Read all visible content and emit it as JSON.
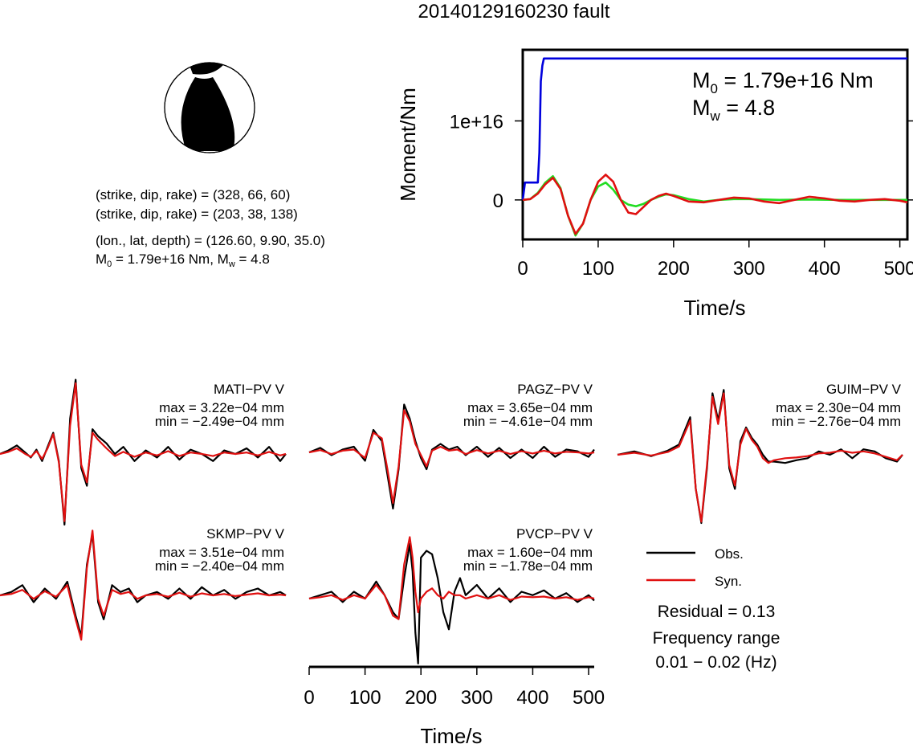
{
  "title": "20140129160230 fault",
  "colors": {
    "obs": "#000000",
    "syn": "#e01010",
    "moment": "#0000dd",
    "stf": "#22dd22",
    "background": "#ffffff"
  },
  "beachball": {
    "lines": [
      "(strike, dip, rake) = (328, 66, 60)",
      "(strike, dip, rake) = (203, 38, 138)",
      "(lon., lat, depth) = (126.60, 9.90, 35.0)"
    ],
    "m0_prefix": "M",
    "m0_sub": "0",
    "m0_value": " = 1.79e+16 Nm, M",
    "mw_sub": "w",
    "mw_value": " = 4.8"
  },
  "moment_panel": {
    "ylabel": "Moment/Nm",
    "xlabel": "Time/s",
    "m0_label": "M",
    "m0_sub": "0",
    "m0_text": " = 1.79e+16 Nm",
    "mw_label": "M",
    "mw_sub": "w",
    "mw_text": " = 4.8"
  },
  "legend": {
    "obs": "Obs.",
    "syn": "Syn.",
    "residual": "Residual = 0.13",
    "freq_title": "Frequency range",
    "freq_value": "0.01 − 0.02 (Hz)"
  },
  "waveform_axis": {
    "xlabel": "Time/s",
    "ticks": [
      "0",
      "100",
      "200",
      "300",
      "400",
      "500"
    ]
  },
  "stations": [
    {
      "name": "MATI−PV V",
      "max": "max = 3.22e−04 mm",
      "min": "min = −2.49e−04 mm"
    },
    {
      "name": "PAGZ−PV V",
      "max": "max = 3.65e−04 mm",
      "min": "min = −4.61e−04 mm"
    },
    {
      "name": "GUIM−PV V",
      "max": "max = 2.30e−04 mm",
      "min": "min = −2.76e−04 mm"
    },
    {
      "name": "SKMP−PV V",
      "max": "max = 3.51e−04 mm",
      "min": "min = −2.40e−04 mm"
    },
    {
      "name": "PVCP−PV V",
      "max": "max = 1.60e−04 mm",
      "min": "min = −1.78e−04 mm"
    }
  ],
  "chart_data": [
    {
      "type": "line",
      "title": "",
      "xlabel": "Time/s",
      "ylabel": "Moment/Nm",
      "xlim": [
        0,
        510
      ],
      "x_ticks": [
        0,
        100,
        200,
        300,
        400,
        500
      ],
      "y_ticks": [
        {
          "value": 0,
          "label": "0"
        },
        {
          "value": 1e+16,
          "label": "1e+16"
        }
      ],
      "ylim": [
        -5000000000000000.0,
        1.9e+16
      ],
      "grid": false,
      "series": [
        {
          "name": "",
          "color": "#0000dd",
          "x": [
            0,
            3,
            20,
            22,
            24,
            26,
            28,
            510
          ],
          "y": [
            0,
            2200000000000000.0,
            2200000000000000.0,
            6000000000000000.0,
            1.5e+16,
            1.7e+16,
            1.79e+16,
            1.79e+16
          ]
        },
        {
          "name": "",
          "color": "#22dd22",
          "x": [
            0,
            10,
            20,
            30,
            40,
            50,
            60,
            70,
            80,
            90,
            100,
            110,
            120,
            130,
            140,
            150,
            160,
            170,
            180,
            190,
            200,
            220,
            240,
            260,
            280,
            300,
            340,
            380,
            420,
            460,
            510
          ],
          "y": [
            0,
            100000000000000.0,
            900000000000000.0,
            2200000000000000.0,
            3000000000000000.0,
            1500000000000000.0,
            -2000000000000000.0,
            -4500000000000000.0,
            -3000000000000000.0,
            0,
            1700000000000000.0,
            2200000000000000.0,
            1300000000000000.0,
            0,
            -600000000000000.0,
            -800000000000000.0,
            -500000000000000.0,
            0,
            400000000000000.0,
            700000000000000.0,
            600000000000000.0,
            100000000000000.0,
            -200000000000000.0,
            0,
            100000000000000.0,
            100000000000000.0,
            0,
            50000000000000.0,
            0,
            0,
            0
          ]
        },
        {
          "name": "",
          "color": "#e01010",
          "x": [
            0,
            10,
            20,
            30,
            40,
            50,
            60,
            70,
            80,
            90,
            100,
            110,
            120,
            130,
            140,
            150,
            160,
            170,
            180,
            190,
            200,
            220,
            240,
            260,
            280,
            300,
            320,
            340,
            360,
            380,
            400,
            420,
            440,
            460,
            480,
            500,
            510
          ],
          "y": [
            0,
            100000000000000.0,
            800000000000000.0,
            2000000000000000.0,
            2800000000000000.0,
            1400000000000000.0,
            -2000000000000000.0,
            -4300000000000000.0,
            -3000000000000000.0,
            0,
            2300000000000000.0,
            3200000000000000.0,
            2300000000000000.0,
            0,
            -1600000000000000.0,
            -1800000000000000.0,
            -900000000000000.0,
            0,
            500000000000000.0,
            800000000000000.0,
            500000000000000.0,
            -200000000000000.0,
            -300000000000000.0,
            0,
            300000000000000.0,
            200000000000000.0,
            -200000000000000.0,
            -400000000000000.0,
            0,
            400000000000000.0,
            200000000000000.0,
            -100000000000000.0,
            -200000000000000.0,
            0,
            100000000000000.0,
            -100000000000000.0,
            -300000000000000.0
          ]
        }
      ]
    },
    {
      "type": "line",
      "title": "MATI−PV V",
      "xlim": [
        0,
        510
      ],
      "series": [
        {
          "name": "Obs.",
          "color": "#000000",
          "x": [
            0,
            15,
            30,
            45,
            55,
            65,
            75,
            85,
            95,
            105,
            115,
            125,
            135,
            145,
            155,
            165,
            175,
            190,
            205,
            220,
            240,
            260,
            280,
            300,
            320,
            340,
            360,
            380,
            400,
            420,
            440,
            460,
            480,
            500,
            510
          ],
          "y": [
            0,
            0.05,
            0.12,
            0.02,
            -0.05,
            0.06,
            -0.1,
            0.1,
            0.3,
            -0.1,
            -1.0,
            0.5,
            1.05,
            -0.2,
            -0.45,
            0.35,
            0.25,
            0.15,
            0.0,
            0.1,
            -0.1,
            0.05,
            -0.05,
            0.1,
            -0.08,
            0.06,
            0.0,
            -0.1,
            0.05,
            0.0,
            0.08,
            -0.05,
            0.1,
            -0.1,
            0.0
          ]
        },
        {
          "name": "Syn.",
          "color": "#e01010",
          "x": [
            0,
            15,
            30,
            45,
            55,
            65,
            75,
            85,
            95,
            105,
            115,
            125,
            135,
            145,
            155,
            165,
            175,
            190,
            205,
            220,
            240,
            260,
            280,
            300,
            320,
            340,
            360,
            380,
            400,
            420,
            440,
            460,
            480,
            500,
            510
          ],
          "y": [
            0,
            0.03,
            0.08,
            0.0,
            -0.04,
            0.04,
            -0.07,
            0.08,
            0.28,
            -0.12,
            -0.95,
            0.4,
            1.0,
            -0.15,
            -0.4,
            0.3,
            0.2,
            0.08,
            -0.03,
            0.03,
            -0.04,
            0.02,
            -0.02,
            0.04,
            -0.03,
            0.02,
            0.0,
            -0.03,
            0.02,
            0.0,
            0.02,
            -0.02,
            0.03,
            -0.02,
            0.0
          ]
        }
      ]
    },
    {
      "type": "line",
      "title": "PAGZ−PV V",
      "xlim": [
        0,
        510
      ],
      "series": [
        {
          "name": "Obs.",
          "color": "#000000",
          "x": [
            0,
            20,
            40,
            60,
            80,
            100,
            115,
            130,
            140,
            150,
            160,
            170,
            180,
            190,
            200,
            210,
            220,
            235,
            250,
            265,
            280,
            300,
            320,
            340,
            360,
            380,
            400,
            420,
            440,
            460,
            480,
            500,
            510
          ],
          "y": [
            0,
            0.08,
            -0.05,
            0.05,
            0.1,
            -0.15,
            0.4,
            0.2,
            -0.4,
            -1.0,
            -0.3,
            0.85,
            0.6,
            0.2,
            -0.1,
            -0.3,
            0.05,
            0.15,
            0.05,
            0.1,
            -0.05,
            0.1,
            -0.08,
            0.08,
            -0.1,
            0.05,
            -0.1,
            0.1,
            -0.08,
            0.05,
            0.02,
            -0.08,
            0.05
          ]
        },
        {
          "name": "Syn.",
          "color": "#e01010",
          "x": [
            0,
            20,
            40,
            60,
            80,
            100,
            115,
            130,
            140,
            150,
            160,
            170,
            180,
            190,
            200,
            210,
            220,
            235,
            250,
            265,
            280,
            300,
            320,
            340,
            360,
            380,
            400,
            420,
            440,
            460,
            480,
            500,
            510
          ],
          "y": [
            0,
            0.04,
            -0.03,
            0.03,
            0.05,
            -0.1,
            0.35,
            0.25,
            -0.3,
            -0.9,
            -0.25,
            0.75,
            0.55,
            0.15,
            -0.05,
            -0.25,
            0.03,
            0.1,
            0.03,
            0.05,
            -0.03,
            0.04,
            -0.02,
            0.03,
            -0.03,
            0.02,
            -0.02,
            0.03,
            -0.02,
            0.01,
            0.0,
            -0.02,
            0.0
          ]
        }
      ]
    },
    {
      "type": "line",
      "title": "GUIM−PV V",
      "xlim": [
        0,
        510
      ],
      "series": [
        {
          "name": "Obs.",
          "color": "#000000",
          "x": [
            0,
            30,
            60,
            90,
            110,
            130,
            140,
            150,
            160,
            170,
            180,
            190,
            200,
            210,
            220,
            230,
            240,
            250,
            260,
            270,
            280,
            300,
            320,
            340,
            360,
            380,
            400,
            420,
            440,
            460,
            480,
            500,
            510
          ],
          "y": [
            0,
            0.05,
            -0.02,
            0.06,
            0.15,
            0.55,
            -0.5,
            -1.0,
            -0.2,
            0.9,
            0.5,
            0.95,
            -0.2,
            -0.5,
            0.2,
            0.4,
            0.25,
            0.15,
            0.0,
            -0.1,
            -0.1,
            -0.12,
            -0.08,
            -0.05,
            0.05,
            0.0,
            0.08,
            -0.05,
            0.08,
            0.05,
            -0.05,
            -0.1,
            0.0
          ]
        },
        {
          "name": "Syn.",
          "color": "#e01010",
          "x": [
            0,
            30,
            60,
            90,
            110,
            130,
            140,
            150,
            160,
            170,
            180,
            190,
            200,
            210,
            220,
            230,
            240,
            250,
            260,
            270,
            280,
            300,
            320,
            340,
            360,
            380,
            400,
            420,
            440,
            460,
            480,
            500,
            510
          ],
          "y": [
            0,
            0.03,
            -0.01,
            0.04,
            0.12,
            0.5,
            -0.5,
            -0.98,
            -0.15,
            0.85,
            0.45,
            0.9,
            -0.15,
            -0.45,
            0.15,
            0.38,
            0.22,
            0.12,
            -0.05,
            -0.12,
            -0.08,
            -0.05,
            -0.04,
            -0.02,
            0.02,
            0.03,
            0.06,
            0.03,
            0.05,
            0.02,
            -0.03,
            -0.08,
            0.0
          ]
        }
      ]
    },
    {
      "type": "line",
      "title": "SKMP−PV V",
      "xlim": [
        0,
        510
      ],
      "series": [
        {
          "name": "Obs.",
          "color": "#000000",
          "x": [
            0,
            20,
            40,
            60,
            80,
            100,
            120,
            135,
            145,
            155,
            165,
            175,
            185,
            200,
            215,
            230,
            245,
            260,
            280,
            300,
            320,
            340,
            360,
            380,
            400,
            420,
            440,
            460,
            480,
            500,
            510
          ],
          "y": [
            0,
            0.05,
            0.15,
            -0.1,
            0.1,
            -0.05,
            0.2,
            -0.3,
            -0.6,
            0.45,
            0.9,
            -0.1,
            -0.35,
            0.15,
            0.05,
            0.1,
            -0.1,
            0.0,
            0.05,
            -0.05,
            0.1,
            -0.05,
            0.12,
            0.0,
            0.08,
            -0.05,
            0.05,
            0.1,
            0.0,
            0.05,
            0.0
          ]
        },
        {
          "name": "Syn.",
          "color": "#e01010",
          "x": [
            0,
            20,
            40,
            60,
            80,
            100,
            120,
            135,
            145,
            155,
            165,
            175,
            185,
            200,
            215,
            230,
            245,
            260,
            280,
            300,
            320,
            340,
            360,
            380,
            400,
            420,
            440,
            460,
            480,
            500,
            510
          ],
          "y": [
            0,
            0.02,
            0.08,
            -0.05,
            0.06,
            -0.02,
            0.15,
            -0.35,
            -0.65,
            0.4,
            0.95,
            -0.05,
            -0.3,
            0.08,
            0.02,
            0.05,
            -0.05,
            0.0,
            0.02,
            -0.02,
            0.04,
            -0.02,
            0.03,
            0.0,
            0.02,
            -0.01,
            0.01,
            0.03,
            0.0,
            0.01,
            0.0
          ]
        }
      ]
    },
    {
      "type": "line",
      "title": "PVCP−PV V",
      "xlim": [
        0,
        510
      ],
      "series": [
        {
          "name": "Obs.",
          "color": "#000000",
          "x": [
            0,
            20,
            40,
            60,
            80,
            100,
            120,
            135,
            150,
            160,
            170,
            180,
            185,
            190,
            195,
            200,
            210,
            220,
            230,
            240,
            250,
            260,
            270,
            280,
            300,
            320,
            340,
            360,
            380,
            400,
            420,
            440,
            460,
            480,
            500,
            510
          ],
          "y": [
            0,
            0.05,
            0.1,
            -0.05,
            0.1,
            0.0,
            0.25,
            0.05,
            -0.2,
            -0.3,
            0.3,
            0.8,
            0.4,
            -0.5,
            -0.95,
            0.6,
            0.7,
            0.65,
            0.3,
            -0.2,
            -0.45,
            0.1,
            0.3,
            0.05,
            0.2,
            0.0,
            0.15,
            -0.05,
            0.1,
            0.05,
            0.12,
            0.0,
            0.08,
            -0.05,
            0.05,
            -0.03
          ]
        },
        {
          "name": "Syn.",
          "color": "#e01010",
          "x": [
            0,
            20,
            40,
            60,
            80,
            100,
            120,
            135,
            150,
            160,
            170,
            180,
            185,
            190,
            195,
            200,
            210,
            220,
            230,
            240,
            250,
            260,
            270,
            280,
            300,
            320,
            340,
            360,
            380,
            400,
            420,
            440,
            460,
            480,
            500,
            510
          ],
          "y": [
            0,
            0.02,
            0.05,
            -0.02,
            0.05,
            0.0,
            0.2,
            0.05,
            -0.25,
            -0.3,
            0.5,
            0.9,
            0.6,
            0.1,
            -0.2,
            0.0,
            0.1,
            0.15,
            0.05,
            0.0,
            0.1,
            0.05,
            0.05,
            0.0,
            0.05,
            0.0,
            0.05,
            -0.02,
            0.03,
            0.02,
            0.03,
            0.0,
            0.02,
            -0.02,
            0.02,
            0.0
          ]
        }
      ]
    }
  ]
}
